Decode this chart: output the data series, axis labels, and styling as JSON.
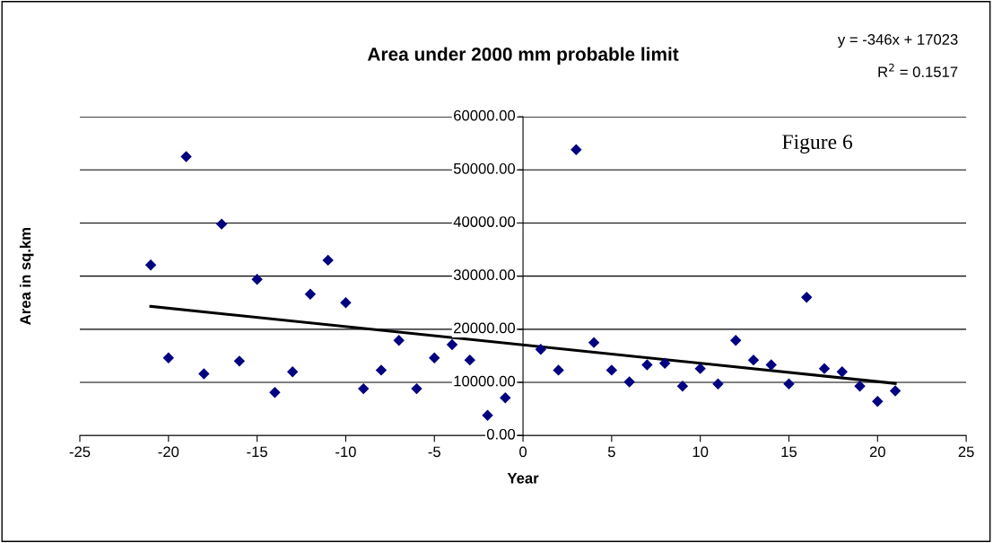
{
  "chart_data": {
    "type": "scatter",
    "title": "Area under 2000 mm probable limit",
    "xlabel": "Year",
    "ylabel": "Area in sq.km",
    "annotations": [
      "y = -346x + 17023",
      "R$^{2}$ = 0.1517",
      "Figure 6"
    ],
    "xlim": [
      -25,
      25
    ],
    "xticks": [
      -25,
      -20,
      -15,
      -10,
      -5,
      0,
      5,
      10,
      15,
      20,
      25
    ],
    "ylim": [
      0,
      60000
    ],
    "yticks": [
      {
        "value": 0,
        "label": "0.00"
      },
      {
        "value": 10000,
        "label": "10000.00"
      },
      {
        "value": 20000,
        "label": "20000.00"
      },
      {
        "value": 30000,
        "label": "30000.00"
      },
      {
        "value": 40000,
        "label": "40000.00"
      },
      {
        "value": 50000,
        "label": "50000.00"
      },
      {
        "value": 60000,
        "label": "60000.00"
      }
    ],
    "grid": "y",
    "marker": "diamond",
    "series": [
      {
        "color": "#000080",
        "x": [
          -21,
          -20,
          -19,
          -18,
          -17,
          -16,
          -15,
          -14,
          -13,
          -12,
          -11,
          -10,
          -9,
          -8,
          -7,
          -6,
          -5,
          -4,
          -3,
          -2,
          -1,
          1,
          2,
          3,
          4,
          5,
          6,
          7,
          8,
          9,
          10,
          11,
          12,
          13,
          14,
          15,
          16,
          17,
          18,
          19,
          20,
          21
        ],
        "values": [
          32100,
          14600,
          52500,
          11600,
          39800,
          14000,
          29400,
          8100,
          12000,
          26600,
          33000,
          25000,
          8800,
          12300,
          17900,
          8800,
          14600,
          17100,
          14200,
          3800,
          7100,
          16200,
          12300,
          53800,
          17500,
          12300,
          10100,
          13300,
          13600,
          9300,
          12600,
          9700,
          17900,
          14200,
          13300,
          9700,
          26000,
          12600,
          12000,
          9300,
          6400,
          8400
        ]
      },
      {
        "type": "line",
        "marker": "none",
        "color": "#000000",
        "x": [
          -21,
          21
        ],
        "values": [
          24300,
          9800
        ]
      }
    ]
  }
}
